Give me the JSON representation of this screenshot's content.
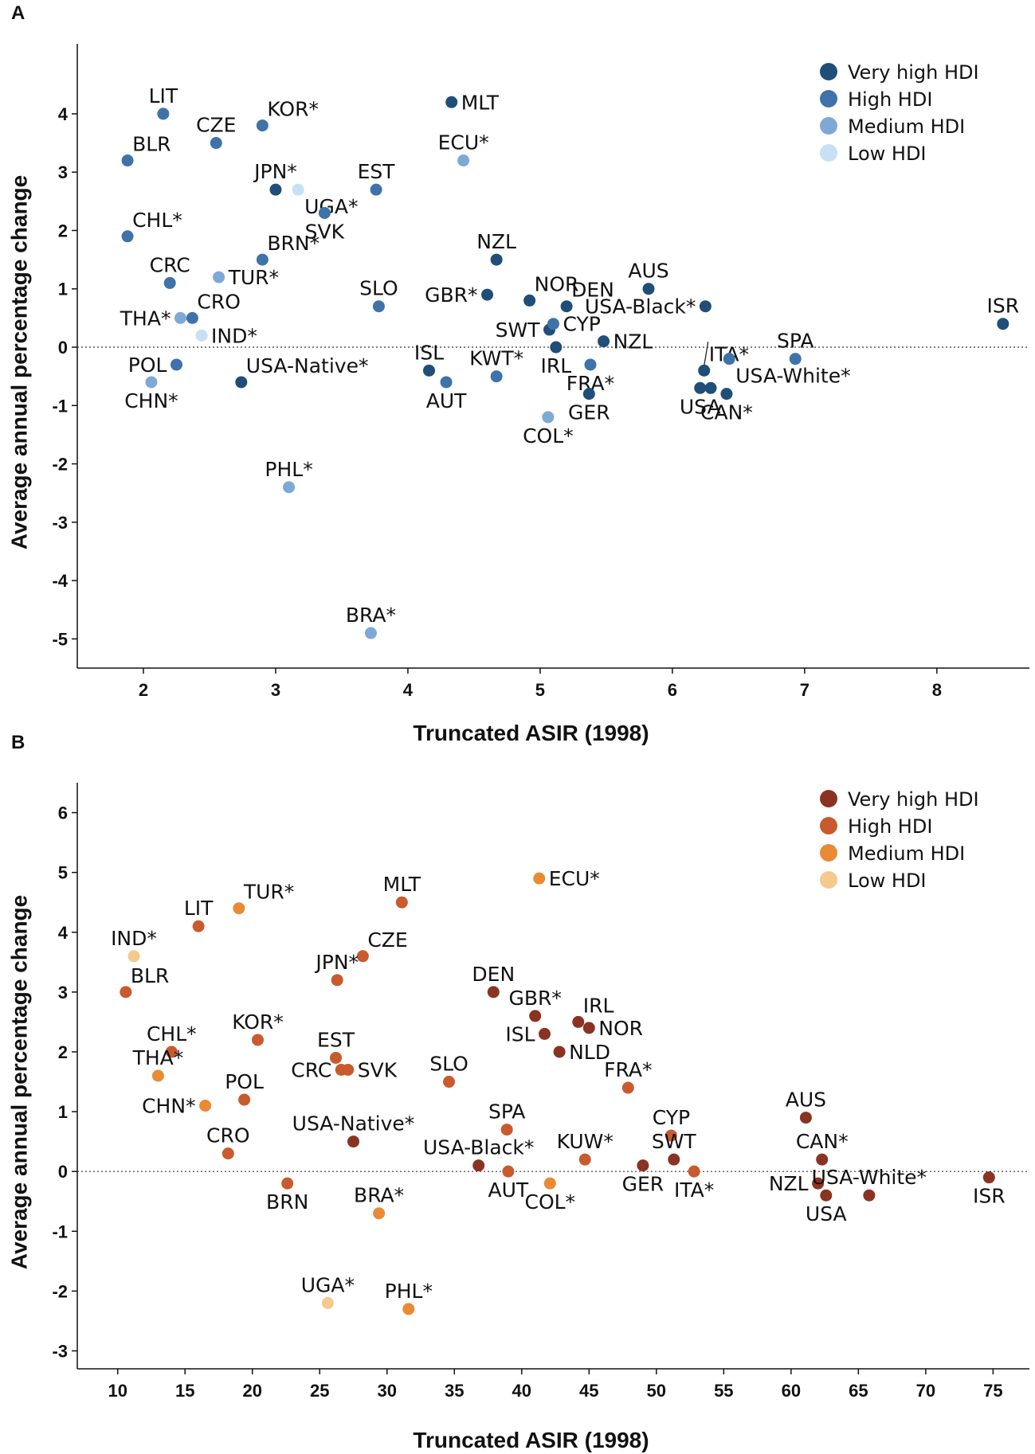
{
  "chart_data": [
    {
      "panel": "A",
      "type": "scatter",
      "xlabel": "Truncated ASIR (1998)",
      "ylabel": "Average annual percentage change",
      "xlim": [
        1.5,
        8.7
      ],
      "ylim": [
        -5.5,
        5.2
      ],
      "xticks": [
        2,
        3,
        4,
        5,
        6,
        7,
        8
      ],
      "yticks": [
        -5,
        -4,
        -3,
        -2,
        -1,
        0,
        1,
        2,
        3,
        4
      ],
      "legend_position": "top-right",
      "legend": [
        {
          "name": "Very high HDI",
          "color": "#1f4e79"
        },
        {
          "name": "High HDI",
          "color": "#3f72a8"
        },
        {
          "name": "Medium HDI",
          "color": "#7ea9d6"
        },
        {
          "name": "Low HDI",
          "color": "#c8e0f4"
        }
      ],
      "points": [
        {
          "label": "LIT",
          "x": 2.15,
          "y": 4.0,
          "hdi": 1,
          "pos": "n"
        },
        {
          "label": "KOR*",
          "x": 2.9,
          "y": 3.8,
          "hdi": 1,
          "pos": "ne"
        },
        {
          "label": "CZE",
          "x": 2.55,
          "y": 3.5,
          "hdi": 1,
          "pos": "n"
        },
        {
          "label": "BLR",
          "x": 1.88,
          "y": 3.2,
          "hdi": 1,
          "pos": "ne"
        },
        {
          "label": "MLT",
          "x": 4.33,
          "y": 4.2,
          "hdi": 0,
          "pos": "e"
        },
        {
          "label": "ECU*",
          "x": 4.42,
          "y": 3.2,
          "hdi": 2,
          "pos": "n"
        },
        {
          "label": "JPN*",
          "x": 3.0,
          "y": 2.7,
          "hdi": 0,
          "pos": "n"
        },
        {
          "label": "UGA*",
          "x": 3.17,
          "y": 2.7,
          "hdi": 3,
          "pos": "se"
        },
        {
          "label": "EST",
          "x": 3.76,
          "y": 2.7,
          "hdi": 1,
          "pos": "n"
        },
        {
          "label": "SVK",
          "x": 3.37,
          "y": 2.3,
          "hdi": 1,
          "pos": "s"
        },
        {
          "label": "CHL*",
          "x": 1.88,
          "y": 1.9,
          "hdi": 1,
          "pos": "ne"
        },
        {
          "label": "BRN*",
          "x": 2.9,
          "y": 1.5,
          "hdi": 1,
          "pos": "ne"
        },
        {
          "label": "NZL",
          "x": 4.67,
          "y": 1.5,
          "hdi": 0,
          "pos": "n"
        },
        {
          "label": "CRC",
          "x": 2.2,
          "y": 1.1,
          "hdi": 1,
          "pos": "n"
        },
        {
          "label": "TUR*",
          "x": 2.57,
          "y": 1.2,
          "hdi": 2,
          "pos": "e"
        },
        {
          "label": "AUS",
          "x": 5.82,
          "y": 1.0,
          "hdi": 0,
          "pos": "n"
        },
        {
          "label": "USA-Black*",
          "x": 6.25,
          "y": 0.7,
          "hdi": 0,
          "pos": "w"
        },
        {
          "label": "SLO",
          "x": 3.78,
          "y": 0.7,
          "hdi": 1,
          "pos": "n"
        },
        {
          "label": "GBR*",
          "x": 4.6,
          "y": 0.9,
          "hdi": 0,
          "pos": "w"
        },
        {
          "label": "NOR",
          "x": 4.92,
          "y": 0.8,
          "hdi": 0,
          "pos": "ne"
        },
        {
          "label": "DEN",
          "x": 5.2,
          "y": 0.7,
          "hdi": 0,
          "pos": "ne"
        },
        {
          "label": "ISR",
          "x": 8.5,
          "y": 0.4,
          "hdi": 0,
          "pos": "n"
        },
        {
          "label": "THA*",
          "x": 2.28,
          "y": 0.5,
          "hdi": 2,
          "pos": "w"
        },
        {
          "label": "CRO",
          "x": 2.37,
          "y": 0.5,
          "hdi": 1,
          "pos": "ne"
        },
        {
          "label": "IND*",
          "x": 2.44,
          "y": 0.2,
          "hdi": 3,
          "pos": "e"
        },
        {
          "label": "SWT",
          "x": 5.07,
          "y": 0.3,
          "hdi": 0,
          "pos": "w"
        },
        {
          "label": "CYP",
          "x": 5.1,
          "y": 0.4,
          "hdi": 1,
          "pos": "e"
        },
        {
          "label": "NZL",
          "x": 5.48,
          "y": 0.1,
          "hdi": 0,
          "pos": "e"
        },
        {
          "label": "IRL",
          "x": 5.12,
          "y": 0.0,
          "hdi": 0,
          "pos": "s"
        },
        {
          "label": "ITA*",
          "x": 6.24,
          "y": -0.4,
          "hdi": 0,
          "pos": "ne"
        },
        {
          "label": "SPA",
          "x": 6.93,
          "y": -0.2,
          "hdi": 1,
          "pos": "n"
        },
        {
          "label": "POL",
          "x": 2.25,
          "y": -0.3,
          "hdi": 1,
          "pos": "w"
        },
        {
          "label": "USA-Native*",
          "x": 2.74,
          "y": -0.6,
          "hdi": 0,
          "pos": "ne"
        },
        {
          "label": "ISL",
          "x": 4.16,
          "y": -0.4,
          "hdi": 0,
          "pos": "n"
        },
        {
          "label": "KWT*",
          "x": 4.67,
          "y": -0.5,
          "hdi": 1,
          "pos": "n"
        },
        {
          "label": "FRA*",
          "x": 5.38,
          "y": -0.3,
          "hdi": 1,
          "pos": "s"
        },
        {
          "label": "USA-White*",
          "x": 6.43,
          "y": -0.2,
          "hdi": 1,
          "pos": "se"
        },
        {
          "label": "CHN*",
          "x": 2.06,
          "y": -0.6,
          "hdi": 2,
          "pos": "s"
        },
        {
          "label": "AUT",
          "x": 4.29,
          "y": -0.6,
          "hdi": 1,
          "pos": "s"
        },
        {
          "label": "GER",
          "x": 5.37,
          "y": -0.8,
          "hdi": 0,
          "pos": "s"
        },
        {
          "label": "USA",
          "x": 6.21,
          "y": -0.7,
          "hdi": 0,
          "pos": "s"
        },
        {
          "label": "",
          "x": 6.29,
          "y": -0.7,
          "hdi": 0,
          "pos": "n"
        },
        {
          "label": "CAN*",
          "x": 6.41,
          "y": -0.8,
          "hdi": 0,
          "pos": "s"
        },
        {
          "label": "COL*",
          "x": 5.06,
          "y": -1.2,
          "hdi": 2,
          "pos": "s"
        },
        {
          "label": "PHL*",
          "x": 3.1,
          "y": -2.4,
          "hdi": 2,
          "pos": "n"
        },
        {
          "label": "BRA*",
          "x": 3.72,
          "y": -4.9,
          "hdi": 2,
          "pos": "n"
        }
      ]
    },
    {
      "panel": "B",
      "type": "scatter",
      "xlabel": "Truncated ASIR (1998)",
      "ylabel": "Average annual percentage change",
      "xlim": [
        7,
        77.7
      ],
      "ylim": [
        -3.3,
        6.5
      ],
      "xticks": [
        10,
        15,
        20,
        25,
        30,
        35,
        40,
        45,
        50,
        55,
        60,
        65,
        70,
        75
      ],
      "yticks": [
        -3,
        -2,
        -1,
        0,
        1,
        2,
        3,
        4,
        5,
        6
      ],
      "legend_position": "top-right",
      "legend": [
        {
          "name": "Very high HDI",
          "color": "#8a3322"
        },
        {
          "name": "High HDI",
          "color": "#c85a2d"
        },
        {
          "name": "Medium HDI",
          "color": "#e98a35"
        },
        {
          "name": "Low HDI",
          "color": "#f6c98c"
        }
      ],
      "points": [
        {
          "label": "ECU*",
          "x": 41.3,
          "y": 4.9,
          "hdi": 2,
          "pos": "e"
        },
        {
          "label": "MLT",
          "x": 31.1,
          "y": 4.5,
          "hdi": 1,
          "pos": "n"
        },
        {
          "label": "TUR*",
          "x": 19.0,
          "y": 4.4,
          "hdi": 2,
          "pos": "ne"
        },
        {
          "label": "LIT",
          "x": 16.0,
          "y": 4.1,
          "hdi": 1,
          "pos": "n"
        },
        {
          "label": "IND*",
          "x": 11.2,
          "y": 3.6,
          "hdi": 3,
          "pos": "n"
        },
        {
          "label": "CZE",
          "x": 28.2,
          "y": 3.6,
          "hdi": 1,
          "pos": "ne"
        },
        {
          "label": "JPN*",
          "x": 26.3,
          "y": 3.2,
          "hdi": 1,
          "pos": "n"
        },
        {
          "label": "BLR",
          "x": 10.6,
          "y": 3.0,
          "hdi": 1,
          "pos": "ne"
        },
        {
          "label": "DEN",
          "x": 37.9,
          "y": 3.0,
          "hdi": 0,
          "pos": "n"
        },
        {
          "label": "GBR*",
          "x": 41.0,
          "y": 2.6,
          "hdi": 0,
          "pos": "n"
        },
        {
          "label": "IRL",
          "x": 44.2,
          "y": 2.5,
          "hdi": 0,
          "pos": "ne"
        },
        {
          "label": "NOR",
          "x": 45.0,
          "y": 2.4,
          "hdi": 0,
          "pos": "e"
        },
        {
          "label": "ISL",
          "x": 41.7,
          "y": 2.3,
          "hdi": 0,
          "pos": "w"
        },
        {
          "label": "NLD",
          "x": 42.8,
          "y": 2.0,
          "hdi": 0,
          "pos": "e"
        },
        {
          "label": "KOR*",
          "x": 20.4,
          "y": 2.2,
          "hdi": 1,
          "pos": "n"
        },
        {
          "label": "CHL*",
          "x": 14.0,
          "y": 2.0,
          "hdi": 1,
          "pos": "n"
        },
        {
          "label": "THA*",
          "x": 13.0,
          "y": 1.6,
          "hdi": 2,
          "pos": "n"
        },
        {
          "label": "EST",
          "x": 26.2,
          "y": 1.9,
          "hdi": 1,
          "pos": "n"
        },
        {
          "label": "CRC",
          "x": 26.6,
          "y": 1.7,
          "hdi": 1,
          "pos": "w"
        },
        {
          "label": "SVK",
          "x": 27.1,
          "y": 1.7,
          "hdi": 1,
          "pos": "e"
        },
        {
          "label": "SLO",
          "x": 34.6,
          "y": 1.5,
          "hdi": 1,
          "pos": "n"
        },
        {
          "label": "FRA*",
          "x": 47.9,
          "y": 1.4,
          "hdi": 1,
          "pos": "n"
        },
        {
          "label": "POL",
          "x": 19.4,
          "y": 1.2,
          "hdi": 1,
          "pos": "n"
        },
        {
          "label": "CHN*",
          "x": 16.5,
          "y": 1.1,
          "hdi": 2,
          "pos": "w"
        },
        {
          "label": "AUS",
          "x": 61.1,
          "y": 0.9,
          "hdi": 0,
          "pos": "n"
        },
        {
          "label": "SPA",
          "x": 38.9,
          "y": 0.7,
          "hdi": 1,
          "pos": "n"
        },
        {
          "label": "USA-Native*",
          "x": 27.5,
          "y": 0.5,
          "hdi": 0,
          "pos": "n"
        },
        {
          "label": "CYP",
          "x": 51.1,
          "y": 0.6,
          "hdi": 1,
          "pos": "n"
        },
        {
          "label": "CRO",
          "x": 18.2,
          "y": 0.3,
          "hdi": 1,
          "pos": "n"
        },
        {
          "label": "KUW*",
          "x": 44.7,
          "y": 0.2,
          "hdi": 1,
          "pos": "n"
        },
        {
          "label": "CAN*",
          "x": 62.3,
          "y": 0.2,
          "hdi": 0,
          "pos": "n"
        },
        {
          "label": "SWT",
          "x": 51.3,
          "y": 0.2,
          "hdi": 0,
          "pos": "n"
        },
        {
          "label": "USA-Black*",
          "x": 36.8,
          "y": 0.1,
          "hdi": 0,
          "pos": "n"
        },
        {
          "label": "GER",
          "x": 49.0,
          "y": 0.1,
          "hdi": 0,
          "pos": "s"
        },
        {
          "label": "AUT",
          "x": 39.0,
          "y": 0.0,
          "hdi": 1,
          "pos": "s"
        },
        {
          "label": "ITA*",
          "x": 52.8,
          "y": 0.0,
          "hdi": 1,
          "pos": "s"
        },
        {
          "label": "COL*",
          "x": 42.1,
          "y": -0.2,
          "hdi": 2,
          "pos": "s"
        },
        {
          "label": "ISR",
          "x": 74.7,
          "y": -0.1,
          "hdi": 0,
          "pos": "s"
        },
        {
          "label": "BRN",
          "x": 22.6,
          "y": -0.2,
          "hdi": 1,
          "pos": "s"
        },
        {
          "label": "NZL",
          "x": 62.0,
          "y": -0.2,
          "hdi": 0,
          "pos": "w"
        },
        {
          "label": "USA",
          "x": 62.6,
          "y": -0.4,
          "hdi": 0,
          "pos": "s"
        },
        {
          "label": "USA-White*",
          "x": 65.8,
          "y": -0.4,
          "hdi": 0,
          "pos": "n"
        },
        {
          "label": "BRA*",
          "x": 29.4,
          "y": -0.7,
          "hdi": 2,
          "pos": "n"
        },
        {
          "label": "UGA*",
          "x": 25.6,
          "y": -2.2,
          "hdi": 3,
          "pos": "n"
        },
        {
          "label": "PHL*",
          "x": 31.6,
          "y": -2.3,
          "hdi": 2,
          "pos": "n"
        }
      ]
    }
  ]
}
